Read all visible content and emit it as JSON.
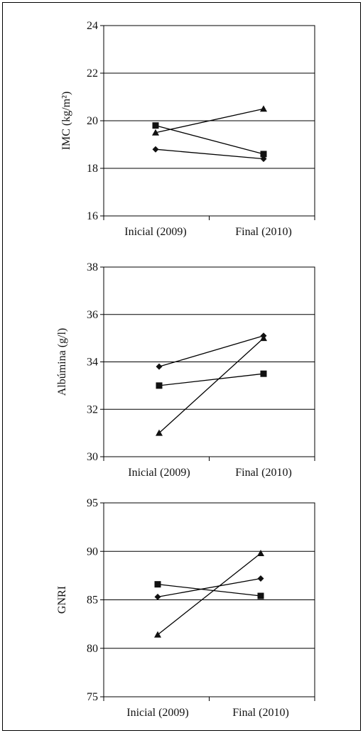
{
  "chart_data": [
    {
      "type": "line",
      "ylabel": "IMC (kg/m²)",
      "categories": [
        "Inicial (2009)",
        "Final (2010)"
      ],
      "ylim": [
        16,
        24
      ],
      "yticks": [
        "16",
        "18",
        "20",
        "22",
        "24"
      ],
      "grid": true,
      "series": [
        {
          "marker": "diamond",
          "values": [
            18.8,
            18.4
          ]
        },
        {
          "marker": "square",
          "values": [
            19.8,
            18.6
          ]
        },
        {
          "marker": "triangle",
          "values": [
            19.5,
            20.5
          ]
        }
      ]
    },
    {
      "type": "line",
      "ylabel": "Albúmina (g/l)",
      "categories": [
        "Inicial (2009)",
        "Final (2010)"
      ],
      "ylim": [
        30,
        38
      ],
      "yticks": [
        "30",
        "32",
        "34",
        "36",
        "38"
      ],
      "grid": true,
      "series": [
        {
          "marker": "diamond",
          "values": [
            33.8,
            35.1
          ]
        },
        {
          "marker": "square",
          "values": [
            33.0,
            33.5
          ]
        },
        {
          "marker": "triangle",
          "values": [
            31.0,
            35.0
          ]
        }
      ]
    },
    {
      "type": "line",
      "ylabel": "GNRI",
      "categories": [
        "Inicial (2009)",
        "Final (2010)"
      ],
      "ylim": [
        75,
        95
      ],
      "yticks": [
        "75",
        "80",
        "85",
        "90",
        "95"
      ],
      "grid": true,
      "series": [
        {
          "marker": "diamond",
          "values": [
            85.3,
            87.2
          ]
        },
        {
          "marker": "square",
          "values": [
            86.6,
            85.4
          ]
        },
        {
          "marker": "triangle",
          "values": [
            81.4,
            89.8
          ]
        }
      ]
    }
  ]
}
